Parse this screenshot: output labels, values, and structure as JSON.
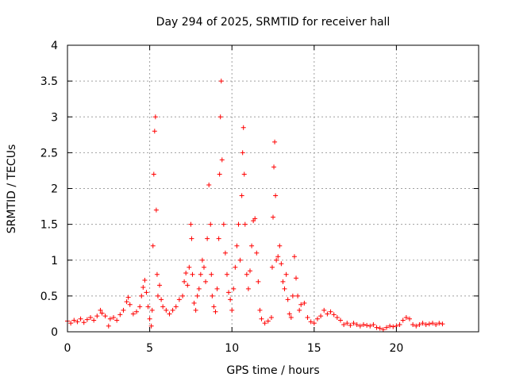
{
  "chart_data": {
    "type": "scatter",
    "title": "Day 294 of 2025, SRMTID for receiver hall",
    "xlabel": "GPS time / hours",
    "ylabel": "SRMTID / TECUs",
    "xlim": [
      0,
      25
    ],
    "ylim": [
      0,
      4
    ],
    "xticks": [
      0,
      5,
      10,
      15,
      20
    ],
    "xtick_labels": [
      "0",
      "5",
      "10",
      "15",
      "20"
    ],
    "yticks": [
      0,
      0.5,
      1,
      1.5,
      2,
      2.5,
      3,
      3.5,
      4
    ],
    "ytick_labels": [
      "0",
      "0.5",
      "1",
      "1.5",
      "2",
      "2.5",
      "3",
      "3.5",
      "4"
    ],
    "grid": true,
    "marker": "+",
    "color": "#ff0000",
    "series": [
      {
        "name": "SRMTID",
        "points": [
          [
            0.0,
            0.15
          ],
          [
            0.2,
            0.12
          ],
          [
            0.4,
            0.16
          ],
          [
            0.6,
            0.14
          ],
          [
            0.8,
            0.18
          ],
          [
            1.0,
            0.13
          ],
          [
            1.2,
            0.17
          ],
          [
            1.4,
            0.2
          ],
          [
            1.6,
            0.16
          ],
          [
            1.8,
            0.22
          ],
          [
            2.0,
            0.3
          ],
          [
            2.1,
            0.26
          ],
          [
            2.3,
            0.22
          ],
          [
            2.5,
            0.08
          ],
          [
            2.6,
            0.18
          ],
          [
            2.8,
            0.2
          ],
          [
            3.0,
            0.16
          ],
          [
            3.2,
            0.24
          ],
          [
            3.4,
            0.3
          ],
          [
            3.6,
            0.42
          ],
          [
            3.7,
            0.48
          ],
          [
            3.8,
            0.38
          ],
          [
            4.0,
            0.25
          ],
          [
            4.2,
            0.28
          ],
          [
            4.4,
            0.35
          ],
          [
            4.5,
            0.5
          ],
          [
            4.6,
            0.62
          ],
          [
            4.7,
            0.72
          ],
          [
            4.8,
            0.55
          ],
          [
            4.9,
            0.35
          ],
          [
            5.0,
            0.18
          ],
          [
            5.1,
            0.08
          ],
          [
            5.15,
            0.3
          ],
          [
            5.2,
            1.2
          ],
          [
            5.25,
            2.2
          ],
          [
            5.3,
            2.8
          ],
          [
            5.35,
            3.0
          ],
          [
            5.4,
            1.7
          ],
          [
            5.45,
            0.8
          ],
          [
            5.5,
            0.5
          ],
          [
            5.6,
            0.65
          ],
          [
            5.7,
            0.45
          ],
          [
            5.8,
            0.35
          ],
          [
            6.0,
            0.3
          ],
          [
            6.2,
            0.25
          ],
          [
            6.4,
            0.3
          ],
          [
            6.6,
            0.35
          ],
          [
            6.8,
            0.45
          ],
          [
            7.0,
            0.5
          ],
          [
            7.1,
            0.7
          ],
          [
            7.2,
            0.82
          ],
          [
            7.3,
            0.65
          ],
          [
            7.4,
            0.9
          ],
          [
            7.5,
            1.5
          ],
          [
            7.55,
            1.3
          ],
          [
            7.6,
            0.8
          ],
          [
            7.7,
            0.4
          ],
          [
            7.8,
            0.3
          ],
          [
            7.9,
            0.5
          ],
          [
            8.0,
            0.6
          ],
          [
            8.1,
            0.8
          ],
          [
            8.2,
            1.0
          ],
          [
            8.3,
            0.9
          ],
          [
            8.4,
            0.7
          ],
          [
            8.5,
            1.3
          ],
          [
            8.6,
            2.05
          ],
          [
            8.7,
            1.5
          ],
          [
            8.75,
            0.8
          ],
          [
            8.8,
            0.5
          ],
          [
            8.9,
            0.35
          ],
          [
            9.0,
            0.28
          ],
          [
            9.1,
            0.6
          ],
          [
            9.2,
            1.3
          ],
          [
            9.25,
            2.2
          ],
          [
            9.3,
            3.0
          ],
          [
            9.35,
            3.5
          ],
          [
            9.4,
            2.4
          ],
          [
            9.5,
            1.5
          ],
          [
            9.6,
            1.1
          ],
          [
            9.7,
            0.8
          ],
          [
            9.8,
            0.55
          ],
          [
            9.9,
            0.45
          ],
          [
            10.0,
            0.3
          ],
          [
            10.1,
            0.6
          ],
          [
            10.2,
            0.9
          ],
          [
            10.3,
            1.2
          ],
          [
            10.4,
            1.5
          ],
          [
            10.5,
            1.0
          ],
          [
            10.6,
            1.9
          ],
          [
            10.65,
            2.5
          ],
          [
            10.7,
            2.85
          ],
          [
            10.75,
            2.2
          ],
          [
            10.8,
            1.5
          ],
          [
            10.9,
            0.8
          ],
          [
            11.0,
            0.6
          ],
          [
            11.1,
            0.85
          ],
          [
            11.2,
            1.2
          ],
          [
            11.3,
            1.55
          ],
          [
            11.4,
            1.58
          ],
          [
            11.5,
            1.1
          ],
          [
            11.6,
            0.7
          ],
          [
            11.7,
            0.3
          ],
          [
            11.8,
            0.18
          ],
          [
            12.0,
            0.12
          ],
          [
            12.2,
            0.15
          ],
          [
            12.4,
            0.2
          ],
          [
            12.45,
            0.9
          ],
          [
            12.5,
            1.6
          ],
          [
            12.55,
            2.3
          ],
          [
            12.6,
            2.65
          ],
          [
            12.65,
            1.9
          ],
          [
            12.7,
            1.0
          ],
          [
            12.8,
            1.05
          ],
          [
            12.9,
            1.2
          ],
          [
            13.0,
            0.95
          ],
          [
            13.1,
            0.7
          ],
          [
            13.2,
            0.6
          ],
          [
            13.3,
            0.8
          ],
          [
            13.4,
            0.45
          ],
          [
            13.5,
            0.25
          ],
          [
            13.6,
            0.2
          ],
          [
            13.7,
            0.5
          ],
          [
            13.8,
            1.05
          ],
          [
            13.9,
            0.75
          ],
          [
            14.0,
            0.5
          ],
          [
            14.1,
            0.3
          ],
          [
            14.2,
            0.38
          ],
          [
            14.4,
            0.4
          ],
          [
            14.6,
            0.2
          ],
          [
            14.8,
            0.14
          ],
          [
            15.0,
            0.12
          ],
          [
            15.2,
            0.18
          ],
          [
            15.4,
            0.22
          ],
          [
            15.6,
            0.3
          ],
          [
            15.8,
            0.25
          ],
          [
            16.0,
            0.28
          ],
          [
            16.2,
            0.24
          ],
          [
            16.4,
            0.2
          ],
          [
            16.6,
            0.16
          ],
          [
            16.8,
            0.1
          ],
          [
            17.0,
            0.12
          ],
          [
            17.2,
            0.09
          ],
          [
            17.4,
            0.12
          ],
          [
            17.6,
            0.1
          ],
          [
            17.8,
            0.08
          ],
          [
            18.0,
            0.1
          ],
          [
            18.2,
            0.09
          ],
          [
            18.4,
            0.08
          ],
          [
            18.6,
            0.1
          ],
          [
            18.8,
            0.06
          ],
          [
            19.0,
            0.05
          ],
          [
            19.2,
            0.03
          ],
          [
            19.4,
            0.06
          ],
          [
            19.6,
            0.08
          ],
          [
            19.8,
            0.07
          ],
          [
            20.0,
            0.08
          ],
          [
            20.2,
            0.1
          ],
          [
            20.4,
            0.16
          ],
          [
            20.6,
            0.2
          ],
          [
            20.8,
            0.18
          ],
          [
            21.0,
            0.1
          ],
          [
            21.2,
            0.08
          ],
          [
            21.4,
            0.1
          ],
          [
            21.6,
            0.12
          ],
          [
            21.8,
            0.1
          ],
          [
            22.0,
            0.11
          ],
          [
            22.2,
            0.12
          ],
          [
            22.4,
            0.1
          ],
          [
            22.6,
            0.12
          ],
          [
            22.8,
            0.11
          ]
        ]
      }
    ]
  }
}
